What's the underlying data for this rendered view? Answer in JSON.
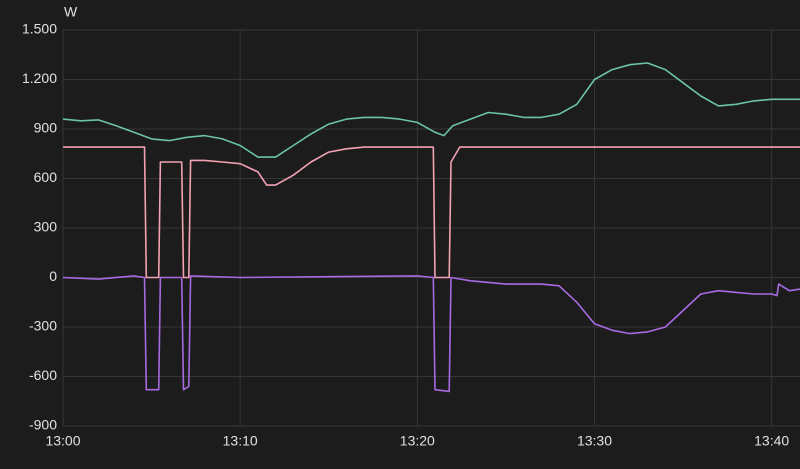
{
  "chart_data": {
    "type": "line",
    "y_label": "W",
    "xlim": [
      0,
      41.6
    ],
    "xticks": [
      {
        "value": 0,
        "label": "13:00"
      },
      {
        "value": 10,
        "label": "13:10"
      },
      {
        "value": 20,
        "label": "13:20"
      },
      {
        "value": 30,
        "label": "13:30"
      },
      {
        "value": 40,
        "label": "13:40"
      }
    ],
    "ylim": [
      -900,
      1500
    ],
    "yticks": [
      {
        "value": 1500,
        "label": "1.500"
      },
      {
        "value": 1200,
        "label": "1.200"
      },
      900,
      600,
      300,
      0,
      -300,
      -600,
      -900
    ],
    "grid": true,
    "series": [
      {
        "color": "#6cc4a2",
        "x": [
          0,
          1,
          2,
          3,
          4,
          5,
          6,
          7,
          8,
          9,
          10,
          11,
          12,
          13,
          14,
          15,
          16,
          17,
          18,
          19,
          20,
          21,
          21.5,
          22,
          23,
          24,
          25,
          26,
          27,
          28,
          29,
          30,
          31,
          32,
          33,
          34,
          35,
          36,
          37,
          38,
          39,
          40,
          41.6
        ],
        "values": [
          960,
          950,
          955,
          920,
          880,
          840,
          830,
          850,
          860,
          840,
          800,
          730,
          730,
          800,
          870,
          930,
          960,
          970,
          970,
          960,
          940,
          880,
          860,
          920,
          960,
          1000,
          990,
          970,
          970,
          990,
          1050,
          1200,
          1260,
          1290,
          1300,
          1260,
          1180,
          1100,
          1040,
          1050,
          1070,
          1080,
          1080
        ]
      },
      {
        "color": "#f2a2b2",
        "x": [
          0,
          4.6,
          4.7,
          5.4,
          5.5,
          6.7,
          6.8,
          7.1,
          7.2,
          8,
          9,
          10,
          11,
          11.5,
          12,
          13,
          14,
          15,
          16,
          17,
          18,
          19,
          20,
          20.9,
          21.0,
          21.8,
          21.9,
          22.4,
          25,
          30,
          35,
          41.6
        ],
        "values": [
          790,
          790,
          0,
          0,
          700,
          700,
          0,
          0,
          710,
          710,
          700,
          690,
          640,
          560,
          560,
          620,
          700,
          760,
          780,
          790,
          790,
          790,
          790,
          790,
          0,
          0,
          700,
          790,
          790,
          790,
          790,
          790
        ]
      },
      {
        "color": "#a86ae2",
        "x": [
          0,
          2,
          4,
          4.6,
          4.7,
          5.4,
          5.5,
          6.7,
          6.8,
          7.1,
          7.2,
          10,
          15,
          20,
          20.9,
          21.0,
          21.8,
          21.9,
          23,
          25,
          27,
          28,
          29,
          30,
          31,
          32,
          33,
          34,
          35,
          36,
          37,
          38,
          39,
          40,
          40.3,
          40.4,
          41,
          41.6
        ],
        "values": [
          0,
          -10,
          10,
          0,
          -680,
          -680,
          0,
          0,
          -680,
          -660,
          10,
          0,
          5,
          10,
          0,
          -680,
          -690,
          0,
          -20,
          -40,
          -40,
          -50,
          -150,
          -280,
          -320,
          -340,
          -330,
          -300,
          -200,
          -100,
          -80,
          -90,
          -100,
          -100,
          -110,
          -40,
          -80,
          -70
        ]
      }
    ]
  }
}
